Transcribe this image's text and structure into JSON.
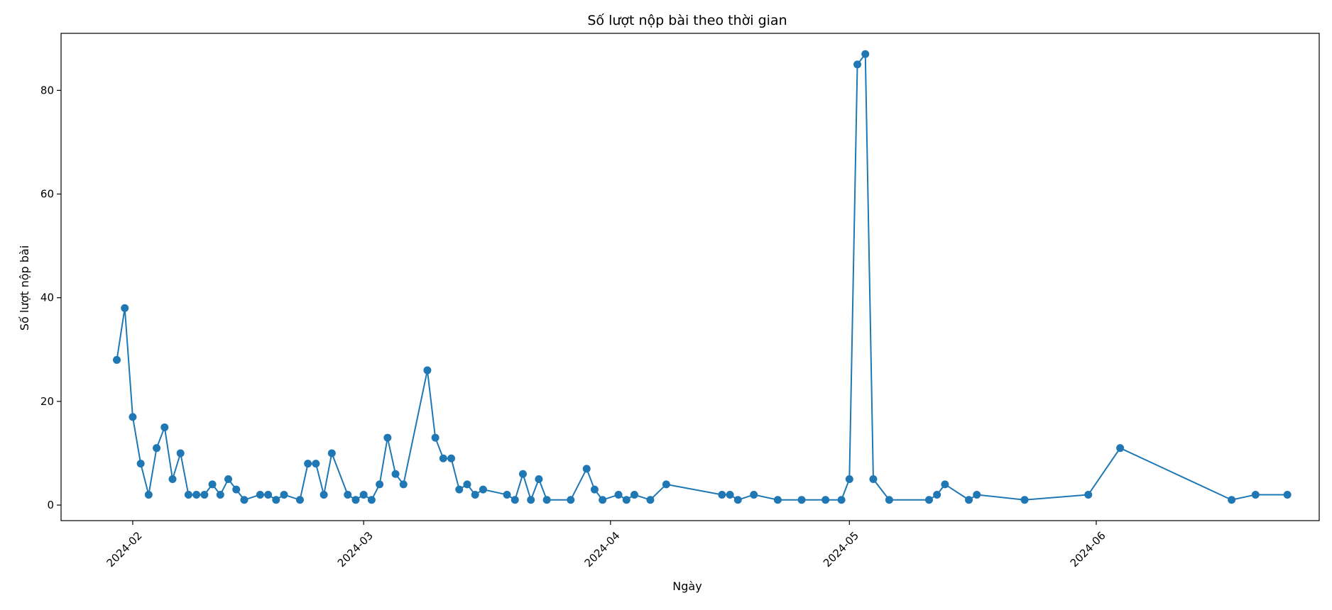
{
  "chart_data": {
    "type": "line",
    "title": "Số lượt nộp bài theo thời gian",
    "xlabel": "Ngày",
    "ylabel": "Số lượt nộp bài",
    "xlim": [
      "2024-01-23",
      "2024-06-29"
    ],
    "ylim": [
      -3,
      91
    ],
    "x_ticks": [
      "2024-02-01",
      "2024-03-01",
      "2024-04-01",
      "2024-05-01",
      "2024-06-01"
    ],
    "x_tick_labels": [
      "2024-02",
      "2024-03",
      "2024-04",
      "2024-05",
      "2024-06"
    ],
    "y_ticks": [
      0,
      20,
      40,
      60,
      80
    ],
    "y_tick_labels": [
      "0",
      "20",
      "40",
      "60",
      "80"
    ],
    "grid": false,
    "marker": "circle",
    "series": [
      {
        "color": "#1f77b4",
        "points": [
          [
            "2024-01-30",
            28
          ],
          [
            "2024-01-31",
            38
          ],
          [
            "2024-02-01",
            17
          ],
          [
            "2024-02-02",
            8
          ],
          [
            "2024-02-03",
            2
          ],
          [
            "2024-02-04",
            11
          ],
          [
            "2024-02-05",
            15
          ],
          [
            "2024-02-06",
            5
          ],
          [
            "2024-02-07",
            10
          ],
          [
            "2024-02-08",
            2
          ],
          [
            "2024-02-09",
            2
          ],
          [
            "2024-02-10",
            2
          ],
          [
            "2024-02-11",
            4
          ],
          [
            "2024-02-12",
            2
          ],
          [
            "2024-02-13",
            5
          ],
          [
            "2024-02-14",
            3
          ],
          [
            "2024-02-15",
            1
          ],
          [
            "2024-02-17",
            2
          ],
          [
            "2024-02-18",
            2
          ],
          [
            "2024-02-19",
            1
          ],
          [
            "2024-02-20",
            2
          ],
          [
            "2024-02-22",
            1
          ],
          [
            "2024-02-23",
            8
          ],
          [
            "2024-02-24",
            8
          ],
          [
            "2024-02-25",
            2
          ],
          [
            "2024-02-26",
            10
          ],
          [
            "2024-02-28",
            2
          ],
          [
            "2024-02-29",
            1
          ],
          [
            "2024-03-01",
            2
          ],
          [
            "2024-03-02",
            1
          ],
          [
            "2024-03-03",
            4
          ],
          [
            "2024-03-04",
            13
          ],
          [
            "2024-03-05",
            6
          ],
          [
            "2024-03-06",
            4
          ],
          [
            "2024-03-09",
            26
          ],
          [
            "2024-03-10",
            13
          ],
          [
            "2024-03-11",
            9
          ],
          [
            "2024-03-12",
            9
          ],
          [
            "2024-03-13",
            3
          ],
          [
            "2024-03-14",
            4
          ],
          [
            "2024-03-15",
            2
          ],
          [
            "2024-03-16",
            3
          ],
          [
            "2024-03-19",
            2
          ],
          [
            "2024-03-20",
            1
          ],
          [
            "2024-03-21",
            6
          ],
          [
            "2024-03-22",
            1
          ],
          [
            "2024-03-23",
            5
          ],
          [
            "2024-03-24",
            1
          ],
          [
            "2024-03-27",
            1
          ],
          [
            "2024-03-29",
            7
          ],
          [
            "2024-03-30",
            3
          ],
          [
            "2024-03-31",
            1
          ],
          [
            "2024-04-02",
            2
          ],
          [
            "2024-04-03",
            1
          ],
          [
            "2024-04-04",
            2
          ],
          [
            "2024-04-06",
            1
          ],
          [
            "2024-04-08",
            4
          ],
          [
            "2024-04-15",
            2
          ],
          [
            "2024-04-16",
            2
          ],
          [
            "2024-04-17",
            1
          ],
          [
            "2024-04-19",
            2
          ],
          [
            "2024-04-22",
            1
          ],
          [
            "2024-04-25",
            1
          ],
          [
            "2024-04-28",
            1
          ],
          [
            "2024-04-30",
            1
          ],
          [
            "2024-05-01",
            5
          ],
          [
            "2024-05-02",
            85
          ],
          [
            "2024-05-03",
            87
          ],
          [
            "2024-05-04",
            5
          ],
          [
            "2024-05-06",
            1
          ],
          [
            "2024-05-11",
            1
          ],
          [
            "2024-05-12",
            2
          ],
          [
            "2024-05-13",
            4
          ],
          [
            "2024-05-16",
            1
          ],
          [
            "2024-05-17",
            2
          ],
          [
            "2024-05-23",
            1
          ],
          [
            "2024-05-31",
            2
          ],
          [
            "2024-06-04",
            11
          ],
          [
            "2024-06-18",
            1
          ],
          [
            "2024-06-21",
            2
          ],
          [
            "2024-06-25",
            2
          ]
        ]
      }
    ]
  }
}
